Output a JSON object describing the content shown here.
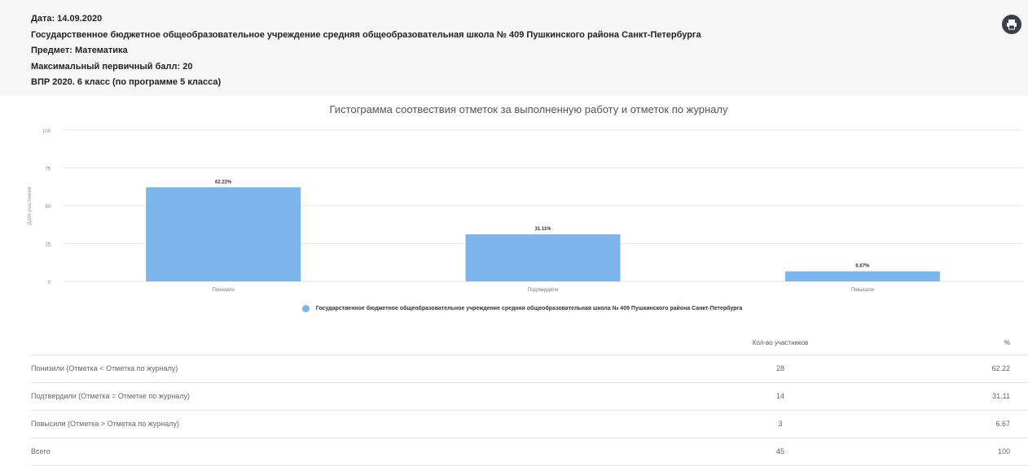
{
  "header": {
    "date": "Дата: 14.09.2020",
    "school": "Государственное бюджетное общеобразовательное учреждение средняя общеобразовательная школа № 409 Пушкинского района Санкт-Петербурга",
    "subject": "Предмет: Математика",
    "max_score": "Максимальный первичный балл: 20",
    "exam": "ВПР 2020. 6 класс (по программе 5 класса)",
    "export_icon": "print-export-icon"
  },
  "chart_data": {
    "type": "bar",
    "title": "Гистограмма соотвествия отметок за выполненную работу и отметок по журналу",
    "ylabel": "Доля участников",
    "xlabel": "",
    "categories": [
      "Понизили",
      "Подтвердили",
      "Повысили"
    ],
    "series": [
      {
        "name": "Государственное бюджетное общеобразовательное учреждение средняя общеобразовательная школа № 409 Пушкинского района Санкт-Петербурга",
        "values": [
          62.22,
          31.11,
          6.67
        ],
        "labels": [
          "62.22%",
          "31.11%",
          "6.67%"
        ],
        "color": "#7cb5ec"
      }
    ],
    "yticks": [
      "0",
      "25",
      "50",
      "75",
      "100"
    ],
    "ylim": [
      0,
      100
    ],
    "grid": true,
    "legend": "bottom"
  },
  "table": {
    "headers": [
      "",
      "Кол-во участников",
      "%"
    ],
    "rows": [
      [
        "Понизили (Отметка < Отметка по журналу)",
        "28",
        "62.22"
      ],
      [
        "Подтвердили (Отметка = Отметке по журналу)",
        "14",
        "31.11"
      ],
      [
        "Повысили (Отметка > Отметка по журналу)",
        "3",
        "6.67"
      ],
      [
        "Всего",
        "45",
        "100"
      ]
    ]
  }
}
